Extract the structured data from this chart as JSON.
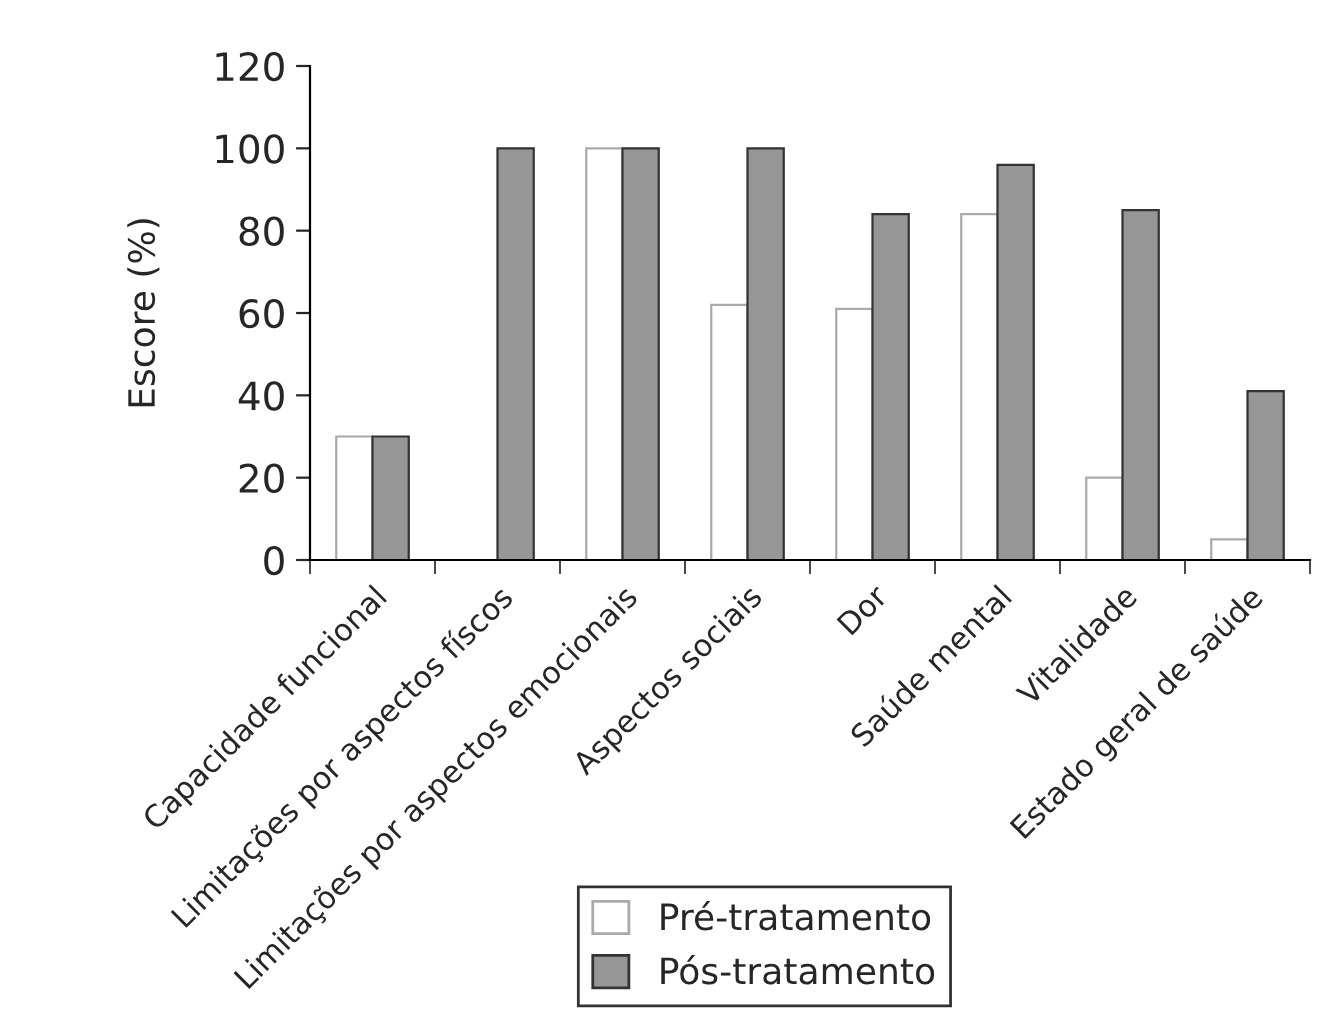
{
  "chart_data": {
    "type": "bar",
    "ylabel": "Escore (%)",
    "categories": [
      "Capacidade funcional",
      "Limitações por aspectos físcos",
      "Limitações por aspectos emocionais",
      "Aspectos sociais",
      "Dor",
      "Saúde mental",
      "Vitalidade",
      "Estado geral de saúde"
    ],
    "series": [
      {
        "name": "Pré-tratamento",
        "color": "#ffffff",
        "values": [
          30,
          0,
          100,
          62,
          61,
          84,
          20,
          5
        ]
      },
      {
        "name": "Pós-tratamento",
        "color": "#969696",
        "values": [
          30,
          100,
          100,
          100,
          84,
          96,
          85,
          41
        ]
      }
    ],
    "ylim": [
      0,
      120
    ],
    "yticks": [
      0,
      20,
      40,
      60,
      80,
      100,
      120
    ],
    "grid": false,
    "legend": "bottom"
  }
}
